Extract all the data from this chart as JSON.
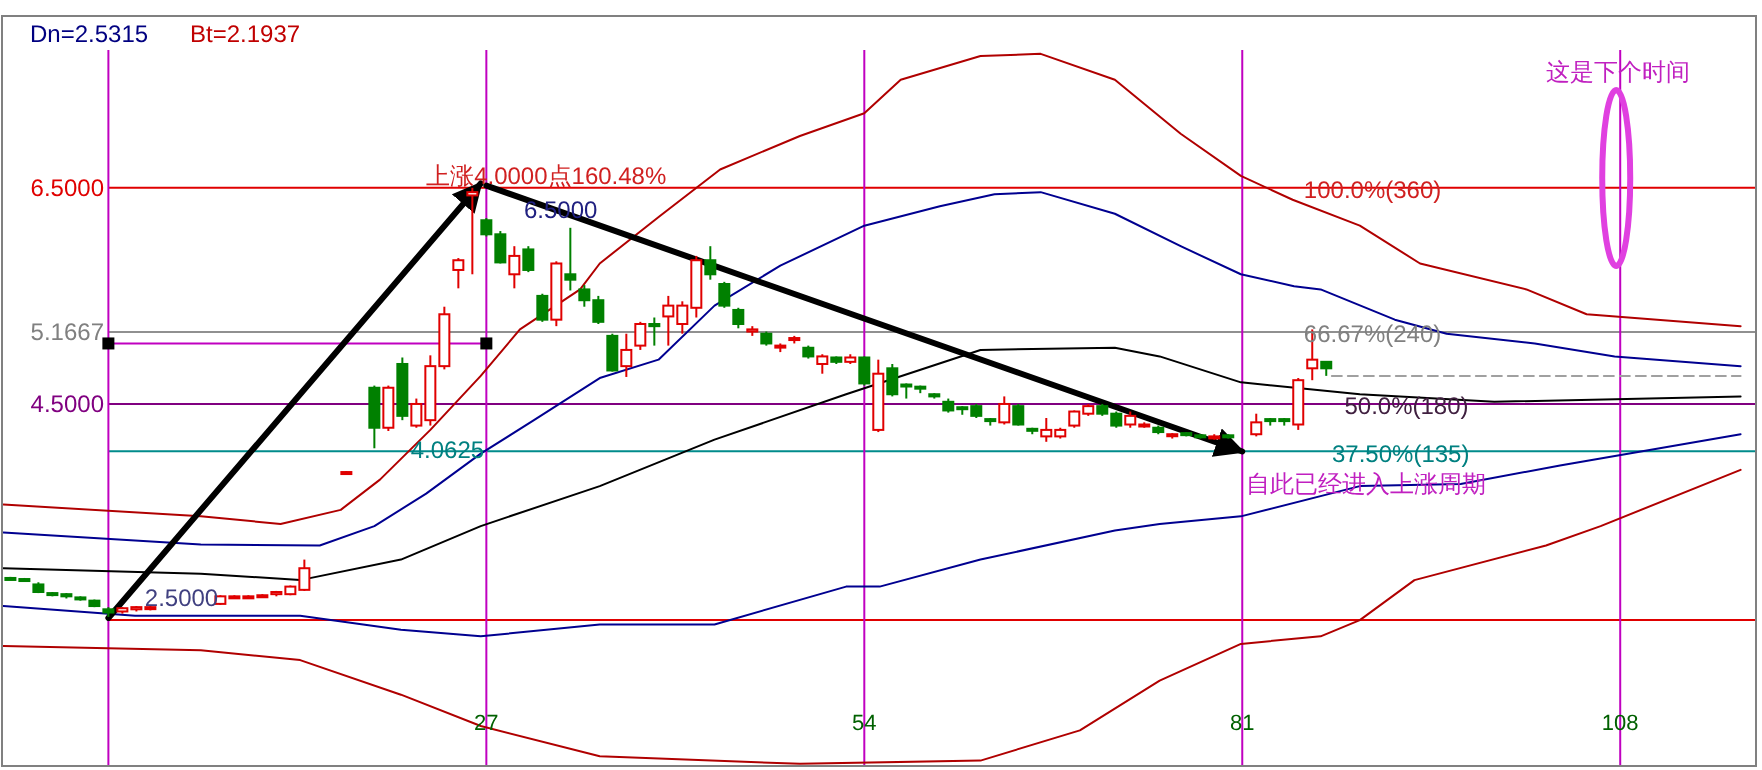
{
  "chart_data": {
    "type": "candlestick",
    "xlim": [
      -7.6,
      117.7
    ],
    "ylim": [
      1.15,
      8.09
    ],
    "xticks": [
      27,
      54,
      81,
      108
    ],
    "yticks": [
      {
        "value": 6.5,
        "label": "6.5000"
      },
      {
        "value": 5.1667,
        "label": "5.1667"
      },
      {
        "value": 4.5,
        "label": "4.5000"
      }
    ],
    "series": [
      {
        "type": "line",
        "color": "#b00000",
        "x": [
          -7.5,
          6.6,
          12.3,
          16.6,
          19.4,
          23,
          26.6,
          29.4,
          33.7,
          35.1,
          39.4,
          43.7,
          49.4,
          54,
          56.6,
          62.3,
          66.6,
          71.9,
          76.6,
          80.9,
          84.6,
          89.4,
          93.7,
          101.3,
          105.6,
          116.6
        ],
        "values": [
          3.57,
          3.46,
          3.39,
          3.52,
          3.8,
          4.26,
          4.76,
          5.19,
          5.56,
          5.8,
          6.24,
          6.67,
          6.98,
          7.19,
          7.5,
          7.72,
          7.74,
          7.5,
          7.0,
          6.61,
          6.39,
          6.15,
          5.8,
          5.56,
          5.33,
          5.22
        ]
      },
      {
        "type": "line",
        "color": "#000090",
        "x": [
          -7.5,
          6.6,
          15.1,
          19,
          22.7,
          26.6,
          30.4,
          35.1,
          39.3,
          43.3,
          48,
          54,
          59.4,
          63.3,
          66.6,
          71.9,
          76.6,
          80.9,
          84.7,
          86.6,
          91.9,
          95.6,
          101.9,
          107.6,
          116.6
        ],
        "values": [
          3.31,
          3.2,
          3.19,
          3.37,
          3.67,
          4.04,
          4.35,
          4.74,
          4.91,
          5.41,
          5.78,
          6.15,
          6.33,
          6.44,
          6.46,
          6.26,
          5.96,
          5.7,
          5.59,
          5.56,
          5.28,
          5.15,
          5.06,
          4.94,
          4.85
        ]
      },
      {
        "type": "line",
        "color": "#000000",
        "x": [
          -7.5,
          6.6,
          13.7,
          20.9,
          26.6,
          35.1,
          43.3,
          52.7,
          62.3,
          71.9,
          75.1,
          80.9,
          89.4,
          99,
          116.6
        ],
        "values": [
          2.98,
          2.93,
          2.87,
          3.06,
          3.37,
          3.74,
          4.17,
          4.59,
          5.0,
          5.02,
          4.94,
          4.7,
          4.59,
          4.52,
          4.57
        ]
      },
      {
        "type": "line",
        "color": "#000090",
        "x": [
          -7.5,
          1.9,
          13.7,
          20.9,
          26.6,
          35.1,
          43.3,
          52.7,
          55.1,
          62.3,
          71.9,
          75.1,
          80.9,
          89.4,
          96.6,
          103.7,
          116.6
        ],
        "values": [
          2.63,
          2.54,
          2.54,
          2.41,
          2.35,
          2.46,
          2.46,
          2.81,
          2.81,
          3.06,
          3.33,
          3.39,
          3.46,
          3.74,
          3.76,
          3.93,
          4.22
        ]
      },
      {
        "type": "line",
        "color": "#b00000",
        "x": [
          -7.5,
          6.6,
          13.7,
          20.9,
          26.6,
          35.1,
          49.4,
          62.3,
          69.4,
          75.1,
          80.9,
          86.6,
          89.4,
          93.3,
          102.7,
          106.6,
          116.6
        ],
        "values": [
          2.26,
          2.22,
          2.13,
          1.81,
          1.52,
          1.24,
          1.17,
          1.2,
          1.48,
          1.94,
          2.28,
          2.35,
          2.5,
          2.87,
          3.19,
          3.37,
          3.89
        ]
      },
      {
        "type": "line",
        "color": "#c000c0",
        "marker": "square",
        "x": [
          0,
          27
        ],
        "values": [
          5.06,
          5.06
        ]
      },
      {
        "type": "line",
        "color": "#a0a0a0",
        "line_style": "dashed",
        "x": [
          87.4,
          116.6
        ],
        "values": [
          4.76,
          4.76
        ]
      },
      {
        "type": "candlestick",
        "color": "#008000",
        "x": [
          -7,
          -6,
          -5,
          -4,
          -3,
          -2,
          -1,
          0,
          19,
          21,
          27,
          28,
          30,
          31,
          33,
          34,
          35,
          36,
          39,
          43,
          44,
          45,
          47,
          50,
          52,
          54,
          56,
          57,
          58,
          59,
          60,
          61,
          62,
          63,
          65,
          66,
          71,
          72,
          75,
          77,
          78,
          80,
          83,
          84,
          87
        ],
        "ohlc": [
          [
            2.89,
            2.9,
            2.87,
            2.88
          ],
          [
            2.88,
            2.89,
            2.86,
            2.87
          ],
          [
            2.83,
            2.85,
            2.75,
            2.76
          ],
          [
            2.75,
            2.76,
            2.72,
            2.74
          ],
          [
            2.74,
            2.75,
            2.7,
            2.72
          ],
          [
            2.71,
            2.72,
            2.68,
            2.7
          ],
          [
            2.68,
            2.69,
            2.62,
            2.63
          ],
          [
            2.6,
            2.62,
            2.53,
            2.57
          ],
          [
            4.65,
            4.67,
            4.09,
            4.28
          ],
          [
            4.87,
            4.93,
            4.35,
            4.39
          ],
          [
            6.2,
            6.22,
            6.05,
            6.07
          ],
          [
            6.07,
            6.1,
            5.8,
            5.81
          ],
          [
            5.93,
            5.96,
            5.72,
            5.74
          ],
          [
            5.5,
            5.52,
            5.26,
            5.28
          ],
          [
            5.7,
            6.13,
            5.55,
            5.65
          ],
          [
            5.56,
            5.6,
            5.4,
            5.46
          ],
          [
            5.46,
            5.5,
            5.24,
            5.26
          ],
          [
            5.13,
            5.15,
            4.8,
            4.81
          ],
          [
            5.24,
            5.3,
            5.04,
            5.22
          ],
          [
            5.83,
            5.96,
            5.65,
            5.7
          ],
          [
            5.61,
            5.63,
            5.39,
            5.41
          ],
          [
            5.37,
            5.39,
            5.2,
            5.24
          ],
          [
            5.15,
            5.17,
            5.04,
            5.06
          ],
          [
            5.02,
            5.04,
            4.92,
            4.94
          ],
          [
            4.93,
            4.94,
            4.87,
            4.89
          ],
          [
            4.93,
            4.94,
            4.67,
            4.69
          ],
          [
            4.83,
            4.87,
            4.57,
            4.59
          ],
          [
            4.68,
            4.69,
            4.55,
            4.67
          ],
          [
            4.66,
            4.67,
            4.6,
            4.65
          ],
          [
            4.59,
            4.6,
            4.55,
            4.57
          ],
          [
            4.52,
            4.55,
            4.42,
            4.44
          ],
          [
            4.47,
            4.48,
            4.4,
            4.46
          ],
          [
            4.48,
            4.5,
            4.37,
            4.39
          ],
          [
            4.36,
            4.37,
            4.3,
            4.35
          ],
          [
            4.48,
            4.5,
            4.3,
            4.31
          ],
          [
            4.27,
            4.28,
            4.22,
            4.26
          ],
          [
            4.48,
            4.5,
            4.39,
            4.41
          ],
          [
            4.41,
            4.43,
            4.28,
            4.3
          ],
          [
            4.28,
            4.3,
            4.22,
            4.24
          ],
          [
            4.23,
            4.24,
            4.2,
            4.22
          ],
          [
            4.21,
            4.22,
            4.18,
            4.2
          ],
          [
            4.21,
            4.22,
            4.18,
            4.2
          ],
          [
            4.36,
            4.37,
            4.3,
            4.35
          ],
          [
            4.36,
            4.37,
            4.3,
            4.35
          ],
          [
            4.89,
            4.89,
            4.76,
            4.83
          ]
        ]
      },
      {
        "type": "candlestick",
        "color": "#e00000",
        "x": [
          1,
          2,
          3,
          8,
          9,
          10,
          11,
          12,
          13,
          14,
          17,
          20,
          22,
          23,
          24,
          25,
          26,
          29,
          32,
          37,
          38,
          40,
          41,
          42,
          46,
          48,
          49,
          51,
          53,
          55,
          64,
          67,
          68,
          69,
          70,
          73,
          74,
          76,
          79,
          82,
          85,
          86
        ],
        "ohlc": [
          [
            2.58,
            2.62,
            2.56,
            2.61
          ],
          [
            2.6,
            2.63,
            2.58,
            2.62
          ],
          [
            2.61,
            2.63,
            2.59,
            2.62
          ],
          [
            2.65,
            2.73,
            2.64,
            2.72
          ],
          [
            2.71,
            2.73,
            2.7,
            2.72
          ],
          [
            2.71,
            2.73,
            2.7,
            2.72
          ],
          [
            2.72,
            2.74,
            2.71,
            2.73
          ],
          [
            2.74,
            2.77,
            2.72,
            2.76
          ],
          [
            2.74,
            2.82,
            2.73,
            2.81
          ],
          [
            2.78,
            3.06,
            2.77,
            2.98
          ],
          [
            3.86,
            3.88,
            3.86,
            3.87
          ],
          [
            4.28,
            4.67,
            4.25,
            4.65
          ],
          [
            4.3,
            4.55,
            4.28,
            4.5
          ],
          [
            4.35,
            4.95,
            4.3,
            4.85
          ],
          [
            4.85,
            5.4,
            4.82,
            5.33
          ],
          [
            5.74,
            5.85,
            5.57,
            5.83
          ],
          [
            6.43,
            6.5,
            5.7,
            6.46
          ],
          [
            5.7,
            5.96,
            5.57,
            5.87
          ],
          [
            5.28,
            5.82,
            5.22,
            5.8
          ],
          [
            4.85,
            5.15,
            4.75,
            5.0
          ],
          [
            5.04,
            5.26,
            5.0,
            5.24
          ],
          [
            5.31,
            5.5,
            5.04,
            5.41
          ],
          [
            5.24,
            5.45,
            5.15,
            5.41
          ],
          [
            5.39,
            5.87,
            5.3,
            5.83
          ],
          [
            5.17,
            5.22,
            5.13,
            5.19
          ],
          [
            5.03,
            5.06,
            4.98,
            5.04
          ],
          [
            5.1,
            5.13,
            5.06,
            5.11
          ],
          [
            4.87,
            4.96,
            4.78,
            4.94
          ],
          [
            4.89,
            4.96,
            4.87,
            4.93
          ],
          [
            4.26,
            4.91,
            4.24,
            4.78
          ],
          [
            4.33,
            4.57,
            4.31,
            4.5
          ],
          [
            4.2,
            4.37,
            4.15,
            4.26
          ],
          [
            4.2,
            4.28,
            4.18,
            4.26
          ],
          [
            4.3,
            4.44,
            4.28,
            4.43
          ],
          [
            4.41,
            4.5,
            4.39,
            4.48
          ],
          [
            4.31,
            4.43,
            4.28,
            4.39
          ],
          [
            4.3,
            4.33,
            4.28,
            4.31
          ],
          [
            4.21,
            4.23,
            4.18,
            4.22
          ],
          [
            4.19,
            4.22,
            4.17,
            4.2
          ],
          [
            4.22,
            4.41,
            4.2,
            4.33
          ],
          [
            4.31,
            4.74,
            4.26,
            4.72
          ],
          [
            4.83,
            5.19,
            4.72,
            4.91
          ]
        ]
      },
      {
        "type": "line",
        "color": "#000000",
        "x": [
          0,
          26.6
        ],
        "values": [
          2.52,
          6.54
        ]
      },
      {
        "type": "line",
        "color": "#000000",
        "x": [
          27,
          81
        ],
        "values": [
          6.52,
          4.06
        ]
      }
    ],
    "ref_lines": [
      {
        "axis": "y",
        "value": 6.5,
        "color": "#e00000"
      },
      {
        "axis": "y",
        "value": 5.1667,
        "color": "#909090"
      },
      {
        "axis": "y",
        "value": 4.5,
        "color": "#800080"
      },
      {
        "axis": "y",
        "value": 4.0625,
        "color": "#008b8b"
      },
      {
        "axis": "y",
        "value": 2.5,
        "color": "#e00000"
      },
      {
        "axis": "x",
        "value": 0,
        "color": "#c000c0"
      },
      {
        "axis": "x",
        "value": 27,
        "color": "#c000c0"
      },
      {
        "axis": "x",
        "value": 54,
        "color": "#c000c0"
      },
      {
        "axis": "x",
        "value": 81,
        "color": "#c000c0"
      },
      {
        "axis": "x",
        "value": 108,
        "color": "#c000c0"
      }
    ],
    "annotations": [
      "Dn=2.5315",
      "Bt=2.1937",
      "这是下个时间",
      {
        "text": "上涨4.0000点160.48%",
        "x": 22.7,
        "y": 6.54
      },
      "6.5000",
      {
        "text": "4.0625",
        "x": 21.6,
        "y": 4.0
      },
      {
        "text": "2.5000",
        "x": 2.6,
        "y": 2.63
      },
      {
        "text": "自此已经进入上涨周期",
        "x": 81.3,
        "y": 3.69
      },
      {
        "text": "100.0%(360)",
        "x": 85.4,
        "y": 6.41
      },
      {
        "text": "66.67%(240)",
        "x": 85.4,
        "y": 5.07
      },
      {
        "text": "50.0%(180)",
        "x": 88.3,
        "y": 4.41
      },
      "37.50%(135)"
    ]
  }
}
